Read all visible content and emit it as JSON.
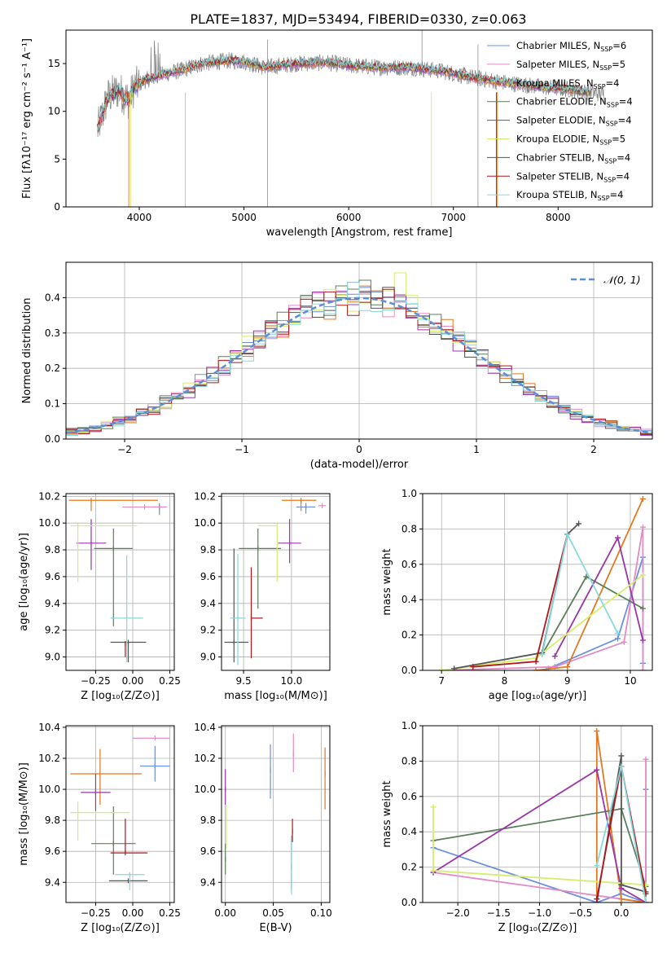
{
  "figure": {
    "title": "PLATE=1837, MJD=53494, FIBERID=0330, z=0.063"
  },
  "colors": {
    "chabrier_miles": "#6a8fe0",
    "salpeter_miles": "#e58ac4",
    "kroupa_miles": "#e2781f",
    "chabrier_elodie": "#5b7f5b",
    "salpeter_elodie": "#9a35a8",
    "kroupa_elodie": "#d3ef6a",
    "chabrier_stelib": "#555555",
    "salpeter_stelib": "#b0161b",
    "kroupa_stelib": "#86d9dc",
    "data_gray": "#808080",
    "normal_curve": "#5b8fd8"
  },
  "chart_data": [
    {
      "id": "spectrum",
      "type": "line",
      "xlabel": "wavelength [Angstrom, rest frame]",
      "ylabel": "Flux [fλ10⁻¹⁷ erg cm⁻² s⁻¹ A⁻¹]",
      "xlim": [
        3300,
        8900
      ],
      "ylim": [
        0,
        18.5
      ],
      "xticks": [
        "4000",
        "5000",
        "6000",
        "7000",
        "8000"
      ],
      "yticks": [
        "0",
        "5",
        "10",
        "15"
      ],
      "grid": false,
      "legend_position": "upper right",
      "data_wavelength_range": [
        3600,
        8450
      ],
      "spectrum_profile": [
        {
          "x": 3600,
          "y": 8.0
        },
        {
          "x": 3700,
          "y": 11.5
        },
        {
          "x": 3800,
          "y": 12.2
        },
        {
          "x": 3900,
          "y": 11.2
        },
        {
          "x": 3950,
          "y": 12.5
        },
        {
          "x": 4050,
          "y": 13.2
        },
        {
          "x": 4200,
          "y": 13.8
        },
        {
          "x": 4400,
          "y": 14.3
        },
        {
          "x": 4600,
          "y": 15.0
        },
        {
          "x": 4850,
          "y": 15.3
        },
        {
          "x": 5000,
          "y": 15.2
        },
        {
          "x": 5200,
          "y": 14.6
        },
        {
          "x": 5500,
          "y": 15.0
        },
        {
          "x": 5800,
          "y": 15.1
        },
        {
          "x": 6000,
          "y": 14.8
        },
        {
          "x": 6300,
          "y": 14.6
        },
        {
          "x": 6600,
          "y": 14.6
        },
        {
          "x": 6900,
          "y": 14.2
        },
        {
          "x": 7200,
          "y": 13.5
        },
        {
          "x": 7500,
          "y": 13.0
        },
        {
          "x": 7800,
          "y": 12.6
        },
        {
          "x": 8100,
          "y": 12.3
        },
        {
          "x": 8300,
          "y": 12.0
        },
        {
          "x": 8450,
          "y": 11.8
        }
      ],
      "legend": [
        {
          "label": "Chabrier MILES, N",
          "sub": "SSP",
          "suffix": "=6",
          "color": "#6a8fe0"
        },
        {
          "label": "Salpeter MILES, N",
          "sub": "SSP",
          "suffix": "=5",
          "color": "#e58ac4"
        },
        {
          "label": "Kroupa MILES, N",
          "sub": "SSP",
          "suffix": "=4",
          "color": "#e2781f"
        },
        {
          "label": "Chabrier ELODIE, N",
          "sub": "SSP",
          "suffix": "=4",
          "color": "#5b7f5b"
        },
        {
          "label": "Salpeter ELODIE, N",
          "sub": "SSP",
          "suffix": "=4",
          "color": "#9a35a8"
        },
        {
          "label": "Kroupa ELODIE, N",
          "sub": "SSP",
          "suffix": "=5",
          "color": "#d3ef6a"
        },
        {
          "label": "Chabrier STELIB, N",
          "sub": "SSP",
          "suffix": "=4",
          "color": "#555555"
        },
        {
          "label": "Salpeter STELIB, N",
          "sub": "SSP",
          "suffix": "=4",
          "color": "#b0161b"
        },
        {
          "label": "Kroupa STELIB, N",
          "sub": "SSP",
          "suffix": "=4",
          "color": "#86d9dc"
        }
      ]
    },
    {
      "id": "residuals",
      "type": "line",
      "xlabel": "(data-model)/error",
      "ylabel": "Normed distribution",
      "xlim": [
        -2.5,
        2.5
      ],
      "ylim": [
        0,
        0.5
      ],
      "xticks": [
        "−2",
        "−1",
        "0",
        "1",
        "2"
      ],
      "yticks": [
        "0.0",
        "0.1",
        "0.2",
        "0.3",
        "0.4"
      ],
      "grid": true,
      "legend_position": "upper right",
      "legend": [
        {
          "label": "𝒩(0, 1)",
          "color": "#5b8fd8"
        }
      ],
      "bin_width": 0.1
    },
    {
      "id": "age_vs_Z",
      "type": "scatter",
      "xlabel": "Z [log₁₀(Z/Z⊙)]",
      "ylabel": "age  [log₁₀(age/yr)]",
      "xlim": [
        -0.45,
        0.28
      ],
      "ylim": [
        8.9,
        10.22
      ],
      "xticks": [
        "−0.25",
        "0.00",
        "0.25"
      ],
      "yticks": [
        "9.0",
        "9.2",
        "9.4",
        "9.6",
        "9.8",
        "10.0",
        "10.2"
      ],
      "grid": true,
      "points": [
        {
          "model": "chabrier_miles",
          "x": 0.18,
          "xerr": [
            0.05,
            0.05
          ],
          "y": 10.12,
          "yerr": [
            0.06,
            0.03
          ]
        },
        {
          "model": "salpeter_miles",
          "x": 0.08,
          "xerr": [
            0.15,
            0.15
          ],
          "y": 10.12,
          "yerr": [
            0.0,
            0.02
          ]
        },
        {
          "model": "kroupa_miles",
          "x": -0.28,
          "xerr": [
            0.15,
            0.45
          ],
          "y": 10.17,
          "yerr": [
            0.08,
            0.0
          ]
        },
        {
          "model": "chabrier_elodie",
          "x": -0.13,
          "xerr": [
            0.13,
            0.13
          ],
          "y": 9.81,
          "yerr": [
            0.58,
            0.15
          ]
        },
        {
          "model": "salpeter_elodie",
          "x": -0.28,
          "xerr": [
            0.1,
            0.1
          ],
          "y": 9.85,
          "yerr": [
            0.2,
            0.18
          ]
        },
        {
          "model": "kroupa_elodie",
          "x": -0.37,
          "xerr": [
            0.05,
            0.4
          ],
          "y": 9.98,
          "yerr": [
            0.42,
            0.0
          ]
        },
        {
          "model": "chabrier_stelib",
          "x": -0.03,
          "xerr": [
            0.12,
            0.12
          ],
          "y": 9.11,
          "yerr": [
            0.15,
            0.0
          ]
        },
        {
          "model": "salpeter_stelib",
          "x": -0.05,
          "xerr": [
            0.0,
            0.0
          ],
          "y": 9.1,
          "yerr": [
            0.1,
            0.0
          ]
        },
        {
          "model": "kroupa_stelib",
          "x": -0.04,
          "xerr": [
            0.11,
            0.11
          ],
          "y": 9.29,
          "yerr": [
            0.33,
            0.47
          ]
        }
      ]
    },
    {
      "id": "age_vs_mass",
      "type": "scatter",
      "xlabel": "mass [log₁₀(M/M⊙)]",
      "ylabel": "",
      "xlim": [
        9.27,
        10.4
      ],
      "ylim": [
        8.9,
        10.22
      ],
      "xticks": [
        "9.5",
        "10.0"
      ],
      "yticks": [
        "9.0",
        "9.2",
        "9.4",
        "9.6",
        "9.8",
        "10.0",
        "10.2"
      ],
      "grid": true,
      "points": [
        {
          "model": "chabrier_miles",
          "x": 10.15,
          "xerr": [
            0.1,
            0.1
          ],
          "y": 10.12,
          "yerr": [
            0.05,
            0.03
          ]
        },
        {
          "model": "salpeter_miles",
          "x": 10.32,
          "xerr": [
            0.04,
            0.04
          ],
          "y": 10.13,
          "yerr": [
            0.02,
            0.02
          ]
        },
        {
          "model": "kroupa_miles",
          "x": 10.1,
          "xerr": [
            0.2,
            0.16
          ],
          "y": 10.17,
          "yerr": [
            0.08,
            0.0
          ]
        },
        {
          "model": "chabrier_elodie",
          "x": 9.65,
          "xerr": [
            0.2,
            0.24
          ],
          "y": 9.81,
          "yerr": [
            0.45,
            0.15
          ]
        },
        {
          "model": "salpeter_elodie",
          "x": 9.98,
          "xerr": [
            0.12,
            0.12
          ],
          "y": 9.85,
          "yerr": [
            0.15,
            0.18
          ]
        },
        {
          "model": "kroupa_elodie",
          "x": 9.85,
          "xerr": [
            0.2,
            0.0
          ],
          "y": 9.98,
          "yerr": [
            0.42,
            0.0
          ]
        },
        {
          "model": "chabrier_stelib",
          "x": 9.4,
          "xerr": [
            0.1,
            0.15
          ],
          "y": 9.11,
          "yerr": [
            0.15,
            0.7
          ]
        },
        {
          "model": "salpeter_stelib",
          "x": 9.58,
          "xerr": [
            0.0,
            0.12
          ],
          "y": 9.29,
          "yerr": [
            0.3,
            0.38
          ]
        },
        {
          "model": "kroupa_stelib",
          "x": 9.44,
          "xerr": [
            0.08,
            0.08
          ],
          "y": 9.29,
          "yerr": [
            0.35,
            0.48
          ]
        }
      ]
    },
    {
      "id": "weight_vs_age",
      "type": "line",
      "xlabel": "age  [log₁₀(age/yr)]",
      "ylabel": "mass weight",
      "xlim": [
        6.7,
        10.35
      ],
      "ylim": [
        0,
        1.0
      ],
      "xticks": [
        "7",
        "8",
        "9",
        "10"
      ],
      "yticks": [
        "0.0",
        "0.2",
        "0.4",
        "0.6",
        "0.8",
        "1.0"
      ],
      "grid": true,
      "series": [
        {
          "model": "chabrier_miles",
          "x": [
            8.7,
            9.8,
            10.2,
            10.2
          ],
          "y": [
            0.01,
            0.18,
            0.64,
            0.04
          ]
        },
        {
          "model": "salpeter_miles",
          "x": [
            7.0,
            8.8,
            9.9,
            10.2,
            10.2
          ],
          "y": [
            0.0,
            0.02,
            0.16,
            0.81,
            0.0
          ]
        },
        {
          "model": "kroupa_miles",
          "x": [
            8.5,
            9.0,
            10.2
          ],
          "y": [
            0.0,
            0.02,
            0.97
          ]
        },
        {
          "model": "chabrier_elodie",
          "x": [
            8.6,
            9.3,
            10.2
          ],
          "y": [
            0.09,
            0.53,
            0.35
          ]
        },
        {
          "model": "salpeter_elodie",
          "x": [
            8.8,
            9.8,
            10.2
          ],
          "y": [
            0.08,
            0.75,
            0.17
          ]
        },
        {
          "model": "kroupa_elodie",
          "x": [
            7.0,
            8.5,
            10.2
          ],
          "y": [
            0.0,
            0.07,
            0.54
          ]
        },
        {
          "model": "chabrier_stelib",
          "x": [
            7.2,
            8.6,
            9.0,
            9.18
          ],
          "y": [
            0.01,
            0.1,
            0.77,
            0.83
          ]
        },
        {
          "model": "salpeter_stelib",
          "x": [
            7.5,
            8.5,
            9.0
          ],
          "y": [
            0.02,
            0.05,
            0.77
          ]
        },
        {
          "model": "kroupa_stelib",
          "x": [
            8.6,
            9.0,
            9.8
          ],
          "y": [
            0.09,
            0.77,
            0.21
          ]
        }
      ]
    },
    {
      "id": "mass_vs_Z",
      "type": "scatter",
      "xlabel": "Z [log₁₀(Z/Z⊙)]",
      "ylabel": "mass [log₁₀(M/M⊙)]",
      "xlim": [
        -0.45,
        0.28
      ],
      "ylim": [
        9.27,
        10.41
      ],
      "xticks": [
        "−0.25",
        "0.00",
        "0.25"
      ],
      "yticks": [
        "9.4",
        "9.6",
        "9.8",
        "10.0",
        "10.2",
        "10.4"
      ],
      "grid": true,
      "points": [
        {
          "model": "chabrier_miles",
          "x": 0.15,
          "xerr": [
            0.1,
            0.1
          ],
          "y": 10.15,
          "yerr": [
            0.1,
            0.13
          ]
        },
        {
          "model": "salpeter_miles",
          "x": 0.15,
          "xerr": [
            0.15,
            0.1
          ],
          "y": 10.33,
          "yerr": [
            0.0,
            0.0
          ]
        },
        {
          "model": "kroupa_miles",
          "x": -0.22,
          "xerr": [
            0.2,
            0.28
          ],
          "y": 10.1,
          "yerr": [
            0.2,
            0.16
          ]
        },
        {
          "model": "chabrier_elodie",
          "x": -0.13,
          "xerr": [
            0.15,
            0.15
          ],
          "y": 9.65,
          "yerr": [
            0.2,
            0.24
          ]
        },
        {
          "model": "salpeter_elodie",
          "x": -0.25,
          "xerr": [
            0.1,
            0.1
          ],
          "y": 9.98,
          "yerr": [
            0.12,
            0.12
          ]
        },
        {
          "model": "kroupa_elodie",
          "x": -0.37,
          "xerr": [
            0.05,
            0.35
          ],
          "y": 9.85,
          "yerr": [
            0.18,
            0.07
          ]
        },
        {
          "model": "chabrier_stelib",
          "x": -0.03,
          "xerr": [
            0.13,
            0.13
          ],
          "y": 9.41,
          "yerr": [
            0.0,
            0.0
          ]
        },
        {
          "model": "salpeter_stelib",
          "x": -0.05,
          "xerr": [
            0.1,
            0.15
          ],
          "y": 9.59,
          "yerr": [
            0.0,
            0.22
          ]
        },
        {
          "model": "kroupa_stelib",
          "x": -0.02,
          "xerr": [
            0.1,
            0.1
          ],
          "y": 9.45,
          "yerr": [
            0.1,
            0.0
          ]
        }
      ]
    },
    {
      "id": "mass_vs_ebv",
      "type": "scatter",
      "xlabel": "E(B-V)",
      "ylabel": "",
      "xlim": [
        -0.004,
        0.109
      ],
      "ylim": [
        9.27,
        10.41
      ],
      "xticks": [
        "0.00",
        "0.05",
        "0.10"
      ],
      "yticks": [
        "9.4",
        "9.6",
        "9.8",
        "10.0",
        "10.2",
        "10.4"
      ],
      "grid": true,
      "points": [
        {
          "model": "chabrier_miles",
          "x": 0.047,
          "y": 10.12,
          "yerr": [
            0.18,
            0.17
          ]
        },
        {
          "model": "salpeter_miles",
          "x": 0.071,
          "y": 10.23,
          "yerr": [
            0.12,
            0.13
          ]
        },
        {
          "model": "kroupa_miles",
          "x": 0.104,
          "y": 10.1,
          "yerr": [
            0.23,
            0.17
          ]
        },
        {
          "model": "chabrier_elodie",
          "x": 0.0,
          "y": 9.55,
          "yerr": [
            0.1,
            0.1
          ]
        },
        {
          "model": "salpeter_elodie",
          "x": 0.0,
          "y": 10.0,
          "yerr": [
            0.1,
            0.13
          ]
        },
        {
          "model": "kroupa_elodie",
          "x": 0.001,
          "y": 9.77,
          "yerr": [
            0.15,
            0.13
          ]
        },
        {
          "model": "chabrier_stelib",
          "x": 0.069,
          "y": 9.5,
          "yerr": [
            0.15,
            0.2
          ]
        },
        {
          "model": "salpeter_stelib",
          "x": 0.07,
          "y": 9.73,
          "yerr": [
            0.07,
            0.08
          ]
        },
        {
          "model": "kroupa_stelib",
          "x": 0.069,
          "y": 9.5,
          "yerr": [
            0.18,
            0.2
          ]
        }
      ]
    },
    {
      "id": "weight_vs_Z",
      "type": "line",
      "xlabel": "Z [log₁₀(Z/Z⊙)]",
      "ylabel": "mass weight",
      "xlim": [
        -2.43,
        0.38
      ],
      "ylim": [
        0,
        1.0
      ],
      "xticks": [
        "−2.0",
        "−1.5",
        "−1.0",
        "−0.5",
        "0.0"
      ],
      "yticks": [
        "0.0",
        "0.2",
        "0.4",
        "0.6",
        "0.8",
        "1.0"
      ],
      "grid": true,
      "series": [
        {
          "model": "chabrier_miles",
          "x": [
            -2.3,
            -0.3,
            0.0,
            0.3,
            0.3
          ],
          "y": [
            0.31,
            0.0,
            0.05,
            0.0,
            0.64
          ]
        },
        {
          "model": "salpeter_miles",
          "x": [
            -2.3,
            0.0,
            0.3,
            0.3
          ],
          "y": [
            0.17,
            0.02,
            0.0,
            0.81
          ]
        },
        {
          "model": "kroupa_miles",
          "x": [
            -0.3,
            -0.3,
            0.0,
            0.3
          ],
          "y": [
            0.0,
            0.97,
            0.02,
            0.0
          ]
        },
        {
          "model": "chabrier_elodie",
          "x": [
            -2.3,
            0.0,
            0.3
          ],
          "y": [
            0.35,
            0.53,
            0.09
          ]
        },
        {
          "model": "salpeter_elodie",
          "x": [
            -2.3,
            -0.3,
            0.0,
            0.3
          ],
          "y": [
            0.17,
            0.75,
            0.08,
            0.0
          ]
        },
        {
          "model": "kroupa_elodie",
          "x": [
            -2.3,
            -2.3,
            0.3,
            0.3
          ],
          "y": [
            0.54,
            0.18,
            0.1,
            0.0
          ]
        },
        {
          "model": "chabrier_stelib",
          "x": [
            -0.3,
            0.0,
            0.0,
            0.3
          ],
          "y": [
            0.0,
            0.83,
            0.1,
            0.06
          ]
        },
        {
          "model": "salpeter_stelib",
          "x": [
            -0.3,
            0.0,
            0.3
          ],
          "y": [
            0.02,
            0.77,
            0.05
          ]
        },
        {
          "model": "kroupa_stelib",
          "x": [
            -0.3,
            0.0,
            0.3
          ],
          "y": [
            0.21,
            0.77,
            0.0
          ]
        }
      ]
    }
  ]
}
